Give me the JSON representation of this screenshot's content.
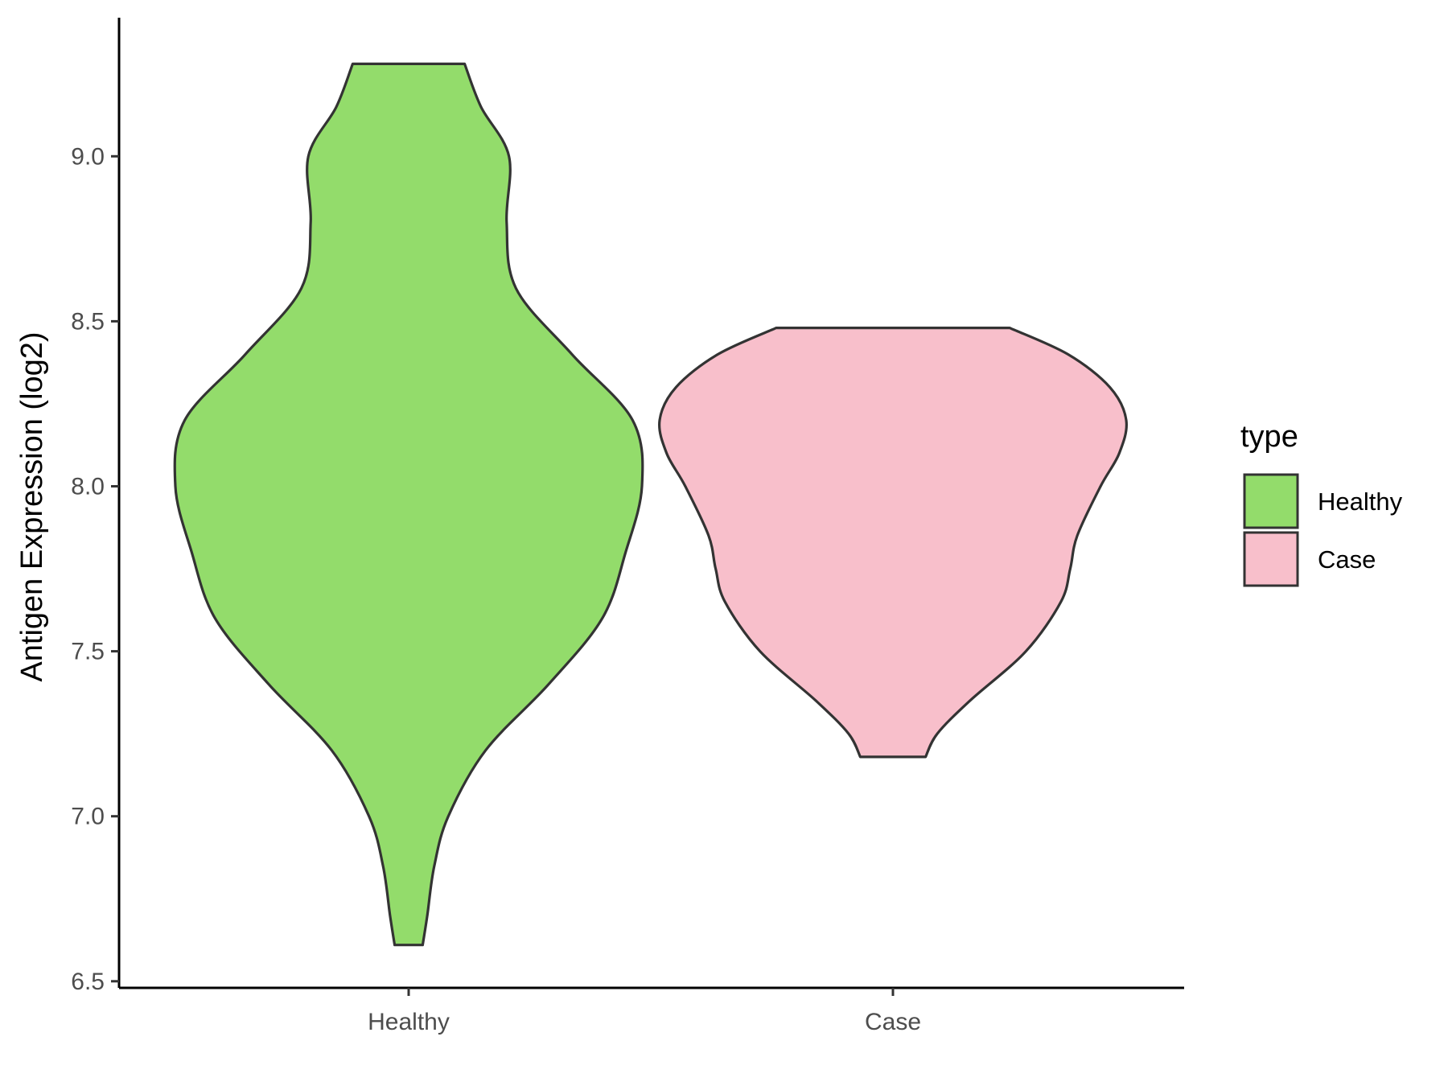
{
  "chart_data": {
    "type": "violin",
    "title": "",
    "xlabel": "",
    "ylabel": "Antigen Expression (log2)",
    "ylim": [
      6.48,
      9.42
    ],
    "yticks": [
      "6.5",
      "7.0",
      "7.5",
      "8.0",
      "8.5",
      "9.0"
    ],
    "categories": [
      "Healthy",
      "Case"
    ],
    "grid": false,
    "legend": {
      "title": "type",
      "position": "right",
      "entries": [
        "Healthy",
        "Case"
      ]
    },
    "series": [
      {
        "name": "Healthy",
        "color": "#93DC6B",
        "min": 6.61,
        "max": 9.28,
        "density_profile": [
          [
            6.61,
            0.06
          ],
          [
            6.7,
            0.08
          ],
          [
            6.85,
            0.11
          ],
          [
            7.0,
            0.17
          ],
          [
            7.2,
            0.33
          ],
          [
            7.4,
            0.6
          ],
          [
            7.6,
            0.83
          ],
          [
            7.8,
            0.93
          ],
          [
            8.0,
            1.0
          ],
          [
            8.2,
            0.96
          ],
          [
            8.4,
            0.7
          ],
          [
            8.6,
            0.46
          ],
          [
            8.8,
            0.42
          ],
          [
            9.0,
            0.43
          ],
          [
            9.15,
            0.31
          ],
          [
            9.28,
            0.24
          ]
        ]
      },
      {
        "name": "Case",
        "color": "#F8BFCB",
        "min": 7.18,
        "max": 8.48,
        "density_profile": [
          [
            7.18,
            0.14
          ],
          [
            7.25,
            0.19
          ],
          [
            7.35,
            0.33
          ],
          [
            7.5,
            0.57
          ],
          [
            7.65,
            0.72
          ],
          [
            7.75,
            0.76
          ],
          [
            7.85,
            0.79
          ],
          [
            8.0,
            0.89
          ],
          [
            8.1,
            0.97
          ],
          [
            8.2,
            1.0
          ],
          [
            8.3,
            0.93
          ],
          [
            8.4,
            0.75
          ],
          [
            8.48,
            0.5
          ]
        ]
      }
    ]
  }
}
